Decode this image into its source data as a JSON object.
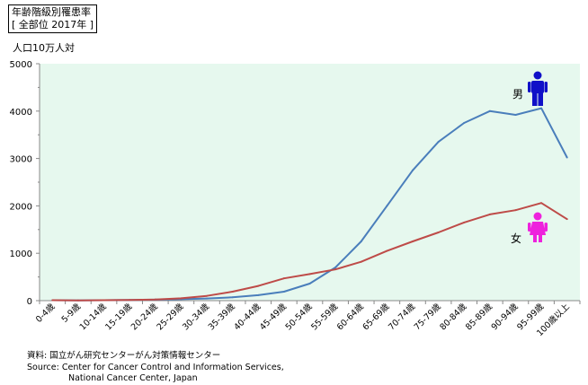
{
  "chart_data": {
    "type": "line",
    "title": "年齢階級別罹患率",
    "subtitle": "[ 全部位 2017年 ]",
    "ylabel": "人口10万人対",
    "ylim": [
      0,
      5000
    ],
    "yticks": [
      "0",
      "1000",
      "2000",
      "3000",
      "4000",
      "5000"
    ],
    "categories": [
      "0-4歳",
      "5-9歳",
      "10-14歳",
      "15-19歳",
      "20-24歳",
      "25-29歳",
      "30-34歳",
      "35-39歳",
      "40-44歳",
      "45-49歳",
      "50-54歳",
      "55-59歳",
      "60-64歳",
      "65-69歳",
      "70-74歳",
      "75-79歳",
      "80-84歳",
      "85-89歳",
      "90-94歳",
      "95-99歳",
      "100歳以上"
    ],
    "series": [
      {
        "name": "男",
        "color": "#4a7ebb",
        "values": [
          10,
          5,
          10,
          15,
          20,
          30,
          45,
          70,
          115,
          190,
          360,
          700,
          1250,
          2000,
          2750,
          3350,
          3750,
          4000,
          3920,
          4060,
          3020
        ]
      },
      {
        "name": "女",
        "color": "#be4b48",
        "values": [
          10,
          5,
          10,
          15,
          25,
          50,
          100,
          190,
          310,
          470,
          560,
          660,
          820,
          1050,
          1250,
          1440,
          1650,
          1820,
          1910,
          2060,
          1720
        ]
      }
    ],
    "grid": false,
    "legend": "inline-icons"
  },
  "source": {
    "line1": "資料:  国立がん研究センターがん対策情報センター",
    "line2": "Source: Center for Cancer Control and Information Services,",
    "line3": "National Cancer Center, Japan"
  },
  "icons": {
    "male": "male-person-icon",
    "female": "female-person-icon"
  },
  "colors": {
    "plot_bg": "#e6f8ee",
    "male_icon": "#1010c8",
    "female_icon": "#ee22dd"
  }
}
